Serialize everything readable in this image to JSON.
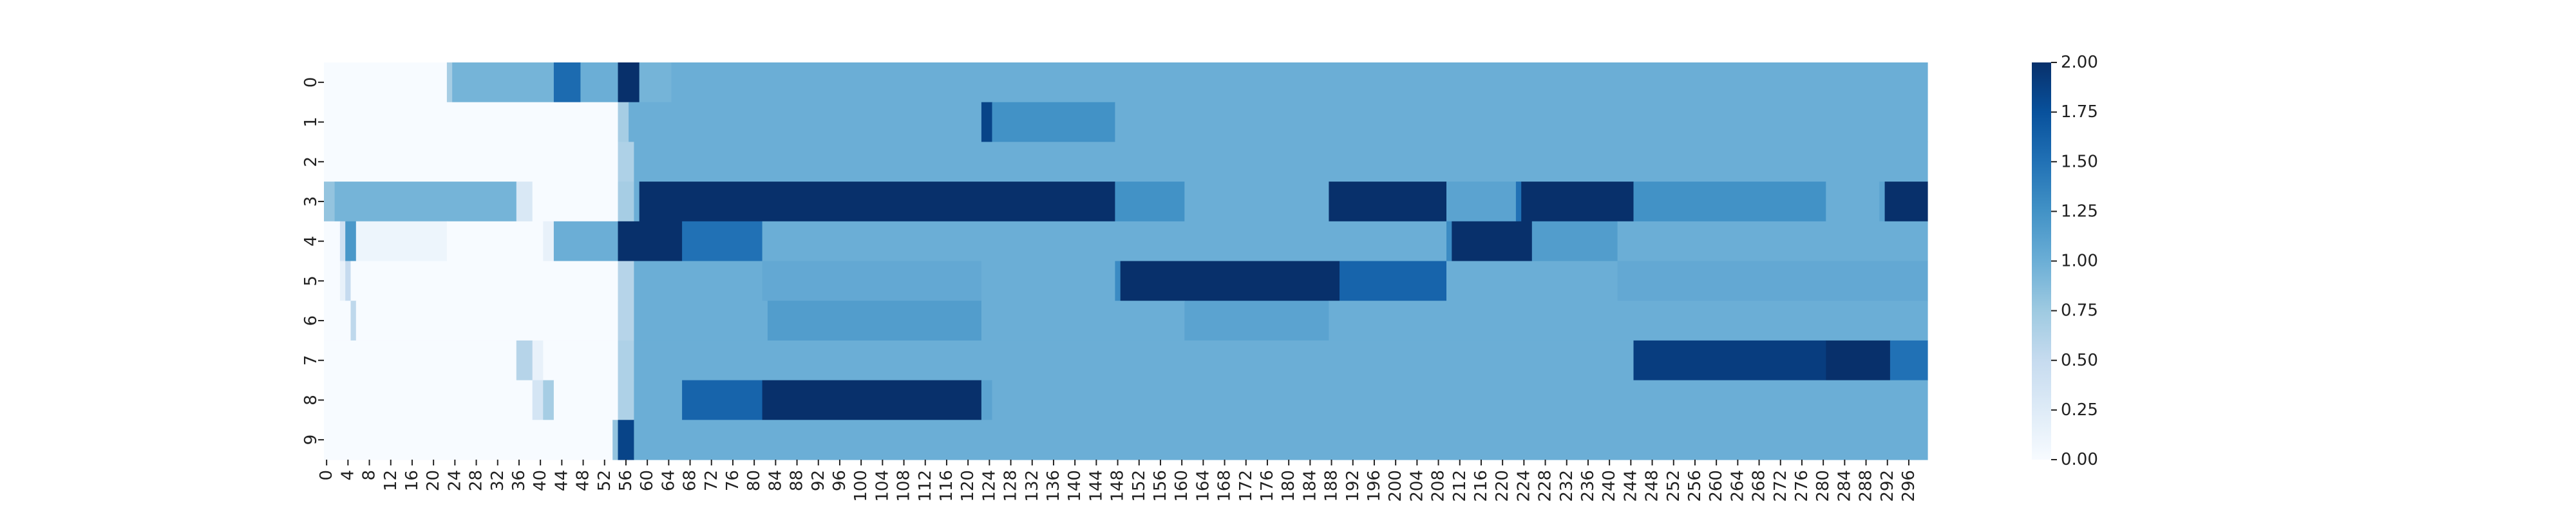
{
  "chart_data": {
    "type": "heatmap",
    "title": "",
    "xlabel": "",
    "ylabel": "",
    "n_cols": 300,
    "rows": [
      "0",
      "1",
      "2",
      "3",
      "4",
      "5",
      "6",
      "7",
      "8",
      "9"
    ],
    "x_tick_step": 4,
    "x_tick_last": 296,
    "vmin": 0,
    "vmax": 2,
    "colormap": "Blues",
    "default_value": 1.0,
    "colorbar_ticks": [
      "0.00",
      "0.25",
      "0.50",
      "0.75",
      "1.00",
      "1.25",
      "1.50",
      "1.75",
      "2.00"
    ],
    "segments": [
      [
        [
          0,
          23,
          0.0
        ],
        [
          23,
          24,
          0.7
        ],
        [
          24,
          43,
          0.95
        ],
        [
          43,
          48,
          1.55
        ],
        [
          48,
          55,
          1.0
        ],
        [
          55,
          59,
          2.0
        ],
        [
          59,
          65,
          0.95
        ],
        [
          65,
          300,
          1.0
        ]
      ],
      [
        [
          0,
          55,
          0.0
        ],
        [
          55,
          57,
          0.7
        ],
        [
          57,
          123,
          1.0
        ],
        [
          123,
          125,
          1.85
        ],
        [
          125,
          148,
          1.25
        ],
        [
          148,
          300,
          1.0
        ]
      ],
      [
        [
          0,
          55,
          0.0
        ],
        [
          55,
          58,
          0.65
        ],
        [
          58,
          300,
          1.0
        ]
      ],
      [
        [
          0,
          2,
          0.8
        ],
        [
          2,
          36,
          0.95
        ],
        [
          36,
          39,
          0.3
        ],
        [
          39,
          55,
          0.0
        ],
        [
          55,
          58,
          0.7
        ],
        [
          58,
          59,
          1.0
        ],
        [
          59,
          148,
          2.0
        ],
        [
          148,
          161,
          1.25
        ],
        [
          161,
          188,
          1.0
        ],
        [
          188,
          210,
          2.0
        ],
        [
          210,
          223,
          1.1
        ],
        [
          223,
          224,
          1.5
        ],
        [
          224,
          245,
          2.0
        ],
        [
          245,
          281,
          1.25
        ],
        [
          281,
          291,
          1.0
        ],
        [
          291,
          292,
          1.1
        ],
        [
          292,
          300,
          2.0
        ]
      ],
      [
        [
          0,
          3,
          0.0
        ],
        [
          3,
          4,
          0.4
        ],
        [
          4,
          6,
          1.2
        ],
        [
          6,
          23,
          0.1
        ],
        [
          23,
          41,
          0.0
        ],
        [
          41,
          43,
          0.15
        ],
        [
          43,
          55,
          1.0
        ],
        [
          55,
          67,
          2.0
        ],
        [
          67,
          82,
          1.5
        ],
        [
          82,
          210,
          1.0
        ],
        [
          210,
          211,
          1.3
        ],
        [
          211,
          226,
          2.0
        ],
        [
          226,
          242,
          1.15
        ],
        [
          242,
          300,
          1.0
        ]
      ],
      [
        [
          0,
          3,
          0.0
        ],
        [
          3,
          4,
          0.15
        ],
        [
          4,
          5,
          0.5
        ],
        [
          5,
          55,
          0.0
        ],
        [
          55,
          58,
          0.6
        ],
        [
          58,
          82,
          1.0
        ],
        [
          82,
          123,
          1.05
        ],
        [
          123,
          148,
          1.0
        ],
        [
          148,
          149,
          1.3
        ],
        [
          149,
          190,
          2.0
        ],
        [
          190,
          210,
          1.6
        ],
        [
          210,
          242,
          1.0
        ],
        [
          242,
          300,
          1.05
        ]
      ],
      [
        [
          0,
          5,
          0.0
        ],
        [
          5,
          6,
          0.55
        ],
        [
          6,
          55,
          0.0
        ],
        [
          55,
          58,
          0.6
        ],
        [
          58,
          83,
          1.0
        ],
        [
          83,
          123,
          1.15
        ],
        [
          123,
          161,
          1.0
        ],
        [
          161,
          188,
          1.1
        ],
        [
          188,
          300,
          1.0
        ]
      ],
      [
        [
          0,
          36,
          0.0
        ],
        [
          36,
          39,
          0.6
        ],
        [
          39,
          41,
          0.15
        ],
        [
          41,
          55,
          0.0
        ],
        [
          55,
          58,
          0.65
        ],
        [
          58,
          245,
          1.0
        ],
        [
          245,
          281,
          1.9
        ],
        [
          281,
          293,
          2.0
        ],
        [
          293,
          300,
          1.5
        ]
      ],
      [
        [
          0,
          39,
          0.0
        ],
        [
          39,
          41,
          0.35
        ],
        [
          41,
          43,
          0.7
        ],
        [
          43,
          55,
          0.0
        ],
        [
          55,
          58,
          0.65
        ],
        [
          58,
          67,
          1.0
        ],
        [
          67,
          82,
          1.6
        ],
        [
          82,
          123,
          2.0
        ],
        [
          123,
          125,
          1.1
        ],
        [
          125,
          300,
          1.0
        ]
      ],
      [
        [
          0,
          54,
          0.0
        ],
        [
          54,
          55,
          0.8
        ],
        [
          55,
          58,
          1.85
        ],
        [
          58,
          300,
          1.0
        ]
      ]
    ]
  }
}
